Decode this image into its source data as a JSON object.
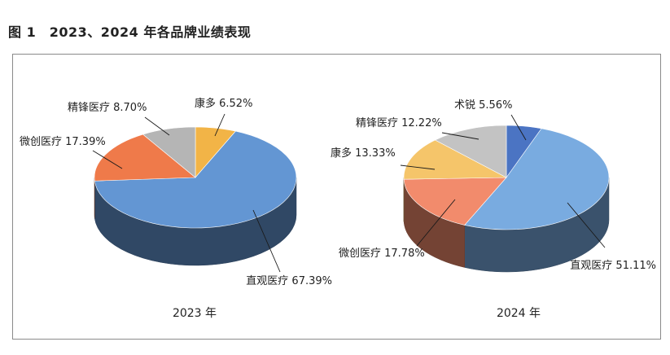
{
  "figure": {
    "title": "图 1　2023、2024 年各品牌业绩表现"
  },
  "chart_data": [
    {
      "type": "pie",
      "caption": "2023 年",
      "slices": [
        {
          "name": "康多",
          "value": 6.52,
          "label": "康多 6.52%",
          "color": "#F2B447"
        },
        {
          "name": "直观医疗",
          "value": 67.39,
          "label": "直观医疗 67.39%",
          "color": "#6396D3"
        },
        {
          "name": "微创医疗",
          "value": 17.39,
          "label": "微创医疗 17.39%",
          "color": "#EF7A4A"
        },
        {
          "name": "精锋医疗",
          "value": 8.7,
          "label": "精锋医疗 8.70%",
          "color": "#B5B5B5"
        }
      ]
    },
    {
      "type": "pie",
      "caption": "2024 年",
      "slices": [
        {
          "name": "术锐",
          "value": 5.56,
          "label": "术锐 5.56%",
          "color": "#4B74C3"
        },
        {
          "name": "直观医疗",
          "value": 51.11,
          "label": "直观医疗 51.11%",
          "color": "#79ABE0"
        },
        {
          "name": "微创医疗",
          "value": 17.78,
          "label": "微创医疗 17.78%",
          "color": "#F28B6C"
        },
        {
          "name": "康多",
          "value": 13.33,
          "label": "康多 13.33%",
          "color": "#F5C56A"
        },
        {
          "name": "精锋医疗",
          "value": 12.22,
          "label": "精锋医疗 12.22%",
          "color": "#C3C3C3"
        }
      ]
    }
  ]
}
